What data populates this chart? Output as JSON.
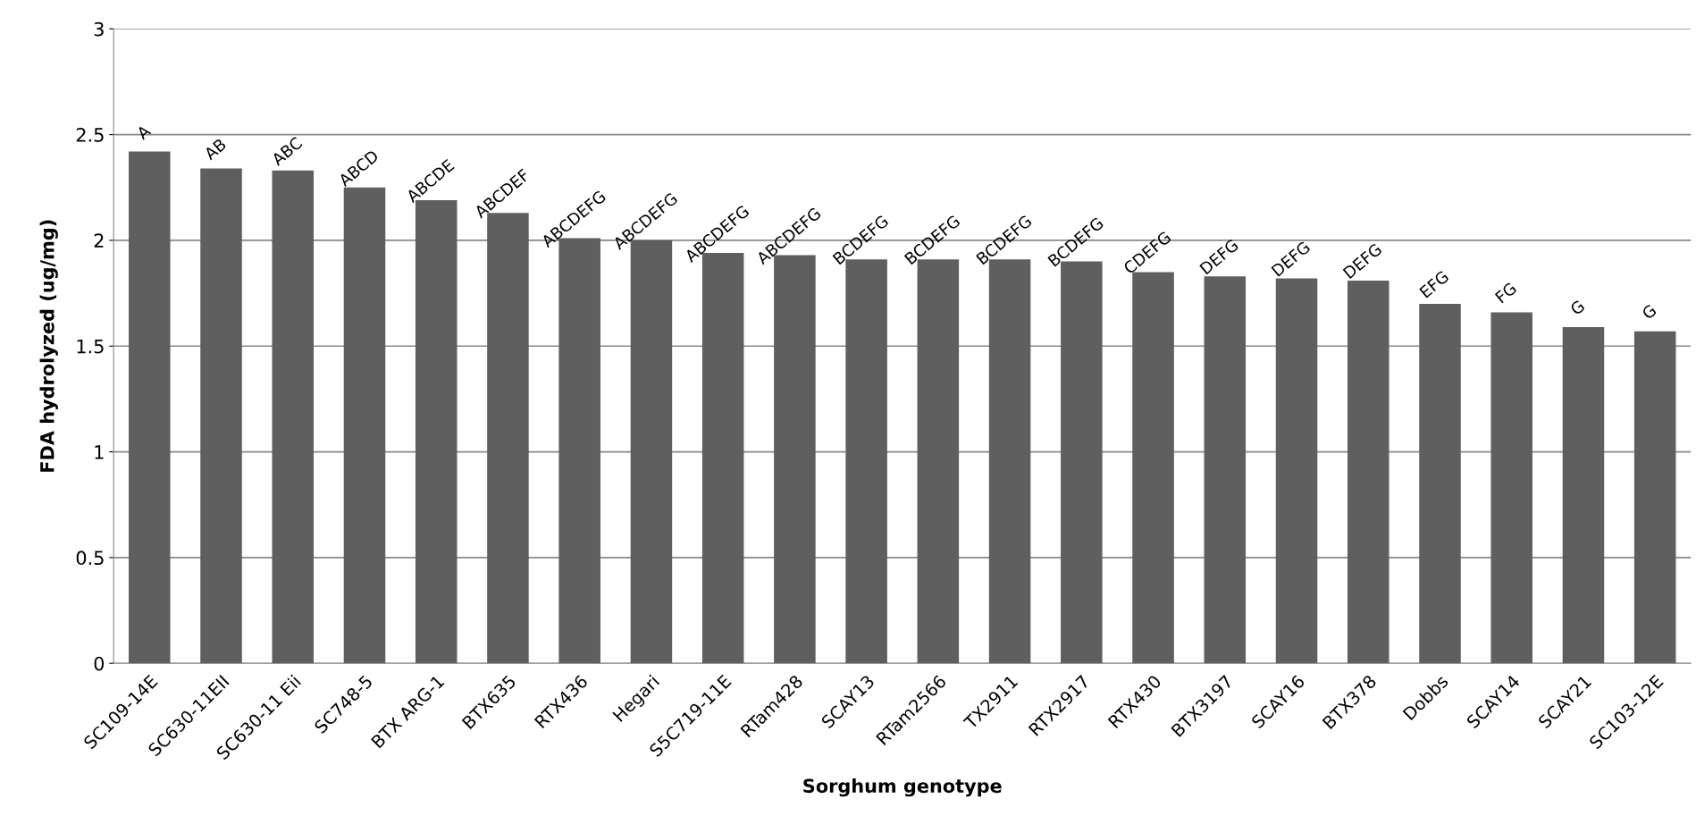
{
  "chart_data": {
    "type": "bar",
    "xlabel": "Sorghum genotype",
    "ylabel": "FDA hydrolyzed (ug/mg)",
    "categories": [
      "SC109-14E",
      "SC630-11EII",
      "SC630-11 Eii",
      "SC748-5",
      "BTX ARG-1",
      "BTX635",
      "RTX436",
      "Hegari",
      "S5C719-11E",
      "RTam428",
      "SCAY13",
      "RTam2566",
      "TX2911",
      "RTX2917",
      "RTX430",
      "BTX3197",
      "SCAY16",
      "BTX378",
      "Dobbs",
      "SCAY14",
      "SCAY21",
      "SC103-12E"
    ],
    "values": [
      2.42,
      2.34,
      2.33,
      2.25,
      2.19,
      2.13,
      2.01,
      2.0,
      1.94,
      1.93,
      1.91,
      1.91,
      1.91,
      1.9,
      1.85,
      1.83,
      1.82,
      1.81,
      1.7,
      1.66,
      1.59,
      1.57
    ],
    "value_labels": [
      "A",
      "AB",
      "ABC",
      "ABCD",
      "ABCDE",
      "ABCDEF",
      "ABCDEFG",
      "ABCDEFG",
      "ABCDEFG",
      "ABCDEFG",
      "BCDEFG",
      "BCDEFG",
      "BCDEFG",
      "BCDEFG",
      "CDEFG",
      "DEFG",
      "DEFG",
      "DEFG",
      "EFG",
      "FG",
      "G",
      "G"
    ],
    "color": "#5f5f5f",
    "ylim": [
      0,
      3
    ],
    "yticks": [
      0,
      0.5,
      1,
      1.5,
      2,
      2.5,
      3
    ],
    "grid": "y",
    "legend": false
  }
}
